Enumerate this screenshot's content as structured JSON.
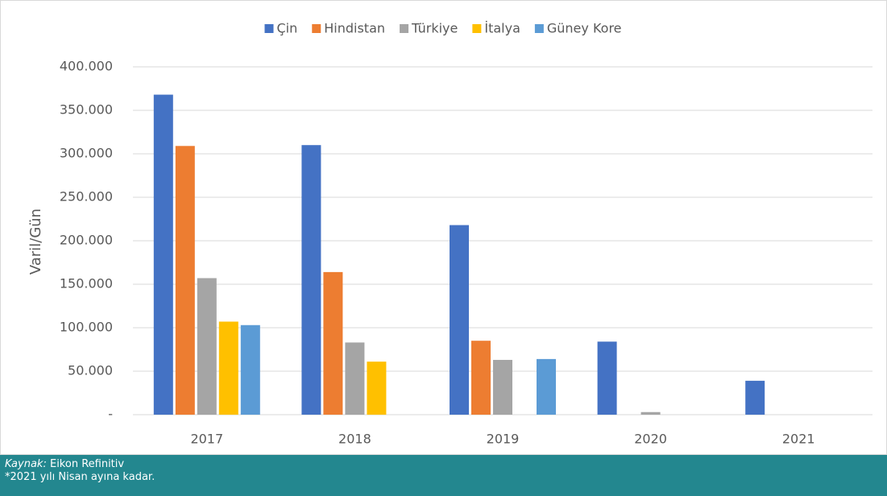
{
  "chart_data": {
    "type": "bar",
    "y_label": "Varil/Gün",
    "categories": [
      "2017",
      "2018",
      "2019",
      "2020",
      "2021"
    ],
    "series": [
      {
        "name": "Çin",
        "color": "#4472c4",
        "values": [
          368000,
          310000,
          218000,
          84000,
          39000
        ]
      },
      {
        "name": "Hindistan",
        "color": "#ed7d31",
        "values": [
          309000,
          164000,
          85000,
          0,
          0
        ]
      },
      {
        "name": "Türkiye",
        "color": "#a5a5a5",
        "values": [
          157000,
          83000,
          63000,
          3000,
          0
        ]
      },
      {
        "name": "İtalya",
        "color": "#ffc000",
        "values": [
          107000,
          61000,
          0,
          0,
          0
        ]
      },
      {
        "name": "Güney Kore",
        "color": "#5b9bd5",
        "values": [
          103000,
          0,
          64000,
          0,
          0
        ]
      }
    ],
    "ylim": [
      0,
      400000
    ],
    "yticks": [
      {
        "value": 0,
        "label": "-"
      },
      {
        "value": 50000,
        "label": "50.000"
      },
      {
        "value": 100000,
        "label": "100.000"
      },
      {
        "value": 150000,
        "label": "150.000"
      },
      {
        "value": 200000,
        "label": "200.000"
      },
      {
        "value": 250000,
        "label": "250.000"
      },
      {
        "value": 300000,
        "label": "300.000"
      },
      {
        "value": 350000,
        "label": "350.000"
      },
      {
        "value": 400000,
        "label": "400.000"
      }
    ],
    "grid": true,
    "legend": "top"
  },
  "footer": {
    "source_label": "Kaynak:",
    "source": "Eikon Refinitiv",
    "note": "*2021 yılı Nisan ayına kadar."
  }
}
